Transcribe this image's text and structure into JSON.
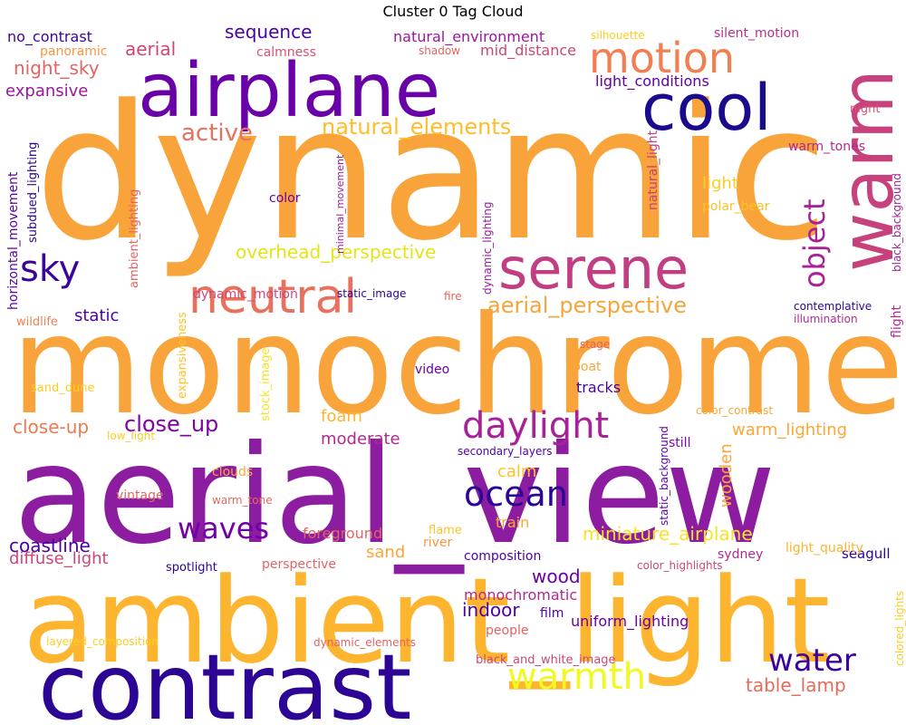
{
  "chart_data": {
    "type": "wordcloud",
    "title": "Cluster 0 Tag Cloud",
    "words": [
      {
        "text": "dynamic",
        "color": "#f9a43a"
      },
      {
        "text": "monochrome",
        "color": "#f9a43a"
      },
      {
        "text": "aerial_view",
        "color": "#8c1da0"
      },
      {
        "text": "ambient_light",
        "color": "#fdb42f"
      },
      {
        "text": "airplane",
        "color": "#6a00a8"
      },
      {
        "text": "contrast",
        "color": "#2c0594"
      },
      {
        "text": "cool",
        "color": "#1a0a8c"
      },
      {
        "text": "warm",
        "color": "#c7427c"
      },
      {
        "text": "serene",
        "color": "#c13e83"
      },
      {
        "text": "motion",
        "color": "#f17f52"
      },
      {
        "text": "neutral",
        "color": "#e8705d"
      },
      {
        "text": "daylight",
        "color": "#a72197"
      },
      {
        "text": "ocean",
        "color": "#2c0594"
      },
      {
        "text": "waves",
        "color": "#7201a8"
      },
      {
        "text": "water",
        "color": "#3d049b"
      },
      {
        "text": "warmth",
        "color": "#f0f921"
      },
      {
        "text": "sky",
        "color": "#3a049a"
      },
      {
        "text": "object",
        "color": "#a82296"
      },
      {
        "text": "natural_elements",
        "color": "#febd2a"
      },
      {
        "text": "aerial_perspective",
        "color": "#f6a53b"
      },
      {
        "text": "overhead_perspective",
        "color": "#e5e419"
      },
      {
        "text": "close_up",
        "color": "#7e03a8"
      },
      {
        "text": "active",
        "color": "#e8705d"
      },
      {
        "text": "miniature_airplane",
        "color": "#f7e225"
      },
      {
        "text": "aerial",
        "color": "#cc4778"
      },
      {
        "text": "night_sky",
        "color": "#e16462"
      },
      {
        "text": "expansive",
        "color": "#9c179e"
      },
      {
        "text": "sequence",
        "color": "#4903a0"
      },
      {
        "text": "light_conditions",
        "color": "#6300a7"
      },
      {
        "text": "natural_environment",
        "color": "#9c179e"
      },
      {
        "text": "no_contrast",
        "color": "#3c049b"
      },
      {
        "text": "mid_distance",
        "color": "#cc4778"
      },
      {
        "text": "silent_motion",
        "color": "#b52f8c"
      },
      {
        "text": "panoramic",
        "color": "#f89540"
      },
      {
        "text": "calmness",
        "color": "#d5536f"
      },
      {
        "text": "shadow",
        "color": "#e16462"
      },
      {
        "text": "silhouette",
        "color": "#fcce25"
      },
      {
        "text": "night",
        "color": "#d5536f"
      },
      {
        "text": "warm_tones",
        "color": "#b12a90"
      },
      {
        "text": "black_background",
        "color": "#a72197"
      },
      {
        "text": "flight",
        "color": "#b12a90"
      },
      {
        "text": "horizontal_movement",
        "color": "#5c01a6"
      },
      {
        "text": "subdued_lighting",
        "color": "#2c0594"
      },
      {
        "text": "ambient_lighting",
        "color": "#e16462"
      },
      {
        "text": "minimal_movement",
        "color": "#a01a9c"
      },
      {
        "text": "natural_light",
        "color": "#c5407e"
      },
      {
        "text": "dynamic_lighting",
        "color": "#9c179e"
      },
      {
        "text": "light",
        "color": "#fcce25"
      },
      {
        "text": "polar_bear",
        "color": "#fec029"
      },
      {
        "text": "color",
        "color": "#6a00a8"
      },
      {
        "text": "dynamic_motion",
        "color": "#cc4778"
      },
      {
        "text": "static_image",
        "color": "#2c0594"
      },
      {
        "text": "fire",
        "color": "#e16462"
      },
      {
        "text": "static",
        "color": "#4c02a1"
      },
      {
        "text": "wildlife",
        "color": "#f1814d"
      },
      {
        "text": "contemplative",
        "color": "#2c0594"
      },
      {
        "text": "illumination",
        "color": "#b12a90"
      },
      {
        "text": "expansiveness",
        "color": "#fdc328"
      },
      {
        "text": "stock_image",
        "color": "#f7e225"
      },
      {
        "text": "stage",
        "color": "#e16462"
      },
      {
        "text": "video",
        "color": "#6a00a8"
      },
      {
        "text": "boat",
        "color": "#fca636"
      },
      {
        "text": "tracks",
        "color": "#4c02a1"
      },
      {
        "text": "sand_dune",
        "color": "#fcce25"
      },
      {
        "text": "color_contrast",
        "color": "#fca636"
      },
      {
        "text": "close-up",
        "color": "#ed7953"
      },
      {
        "text": "foam",
        "color": "#fdb42f"
      },
      {
        "text": "moderate",
        "color": "#b12a90"
      },
      {
        "text": "warm_lighting",
        "color": "#fca636"
      },
      {
        "text": "still",
        "color": "#8405a7"
      },
      {
        "text": "low_light",
        "color": "#fcce25"
      },
      {
        "text": "secondary_layers",
        "color": "#4c02a1"
      },
      {
        "text": "wooden",
        "color": "#fca636"
      },
      {
        "text": "static_background",
        "color": "#5c01a6"
      },
      {
        "text": "clouds",
        "color": "#fca636"
      },
      {
        "text": "calm",
        "color": "#fdc328"
      },
      {
        "text": "vintage",
        "color": "#e16462"
      },
      {
        "text": "warm_tone",
        "color": "#e56b5d"
      },
      {
        "text": "coastline",
        "color": "#4c02a1"
      },
      {
        "text": "diffuse_light",
        "color": "#cc4778"
      },
      {
        "text": "foreground",
        "color": "#e16462"
      },
      {
        "text": "sand",
        "color": "#fca636"
      },
      {
        "text": "train",
        "color": "#fca636"
      },
      {
        "text": "flame",
        "color": "#fdc328"
      },
      {
        "text": "river",
        "color": "#f89540"
      },
      {
        "text": "seagull",
        "color": "#2c0594"
      },
      {
        "text": "composition",
        "color": "#4c02a1"
      },
      {
        "text": "sydney",
        "color": "#b12a90"
      },
      {
        "text": "light_quality",
        "color": "#fdb42f"
      },
      {
        "text": "spotlight",
        "color": "#2c0594"
      },
      {
        "text": "perspective",
        "color": "#e16462"
      },
      {
        "text": "color_highlights",
        "color": "#cc4778"
      },
      {
        "text": "wood",
        "color": "#6a00a8"
      },
      {
        "text": "monochromatic",
        "color": "#b12a90"
      },
      {
        "text": "indoor",
        "color": "#4c02a1"
      },
      {
        "text": "film",
        "color": "#4c02a1"
      },
      {
        "text": "uniform_lighting",
        "color": "#6a00a8"
      },
      {
        "text": "people",
        "color": "#e16462"
      },
      {
        "text": "layered_composition",
        "color": "#fcce25"
      },
      {
        "text": "dynamic_elements",
        "color": "#e16462"
      },
      {
        "text": "black_and_white_image",
        "color": "#cc4778"
      },
      {
        "text": "table_lamp",
        "color": "#e56b5d"
      },
      {
        "text": "colored_lights",
        "color": "#fcce25"
      }
    ]
  }
}
